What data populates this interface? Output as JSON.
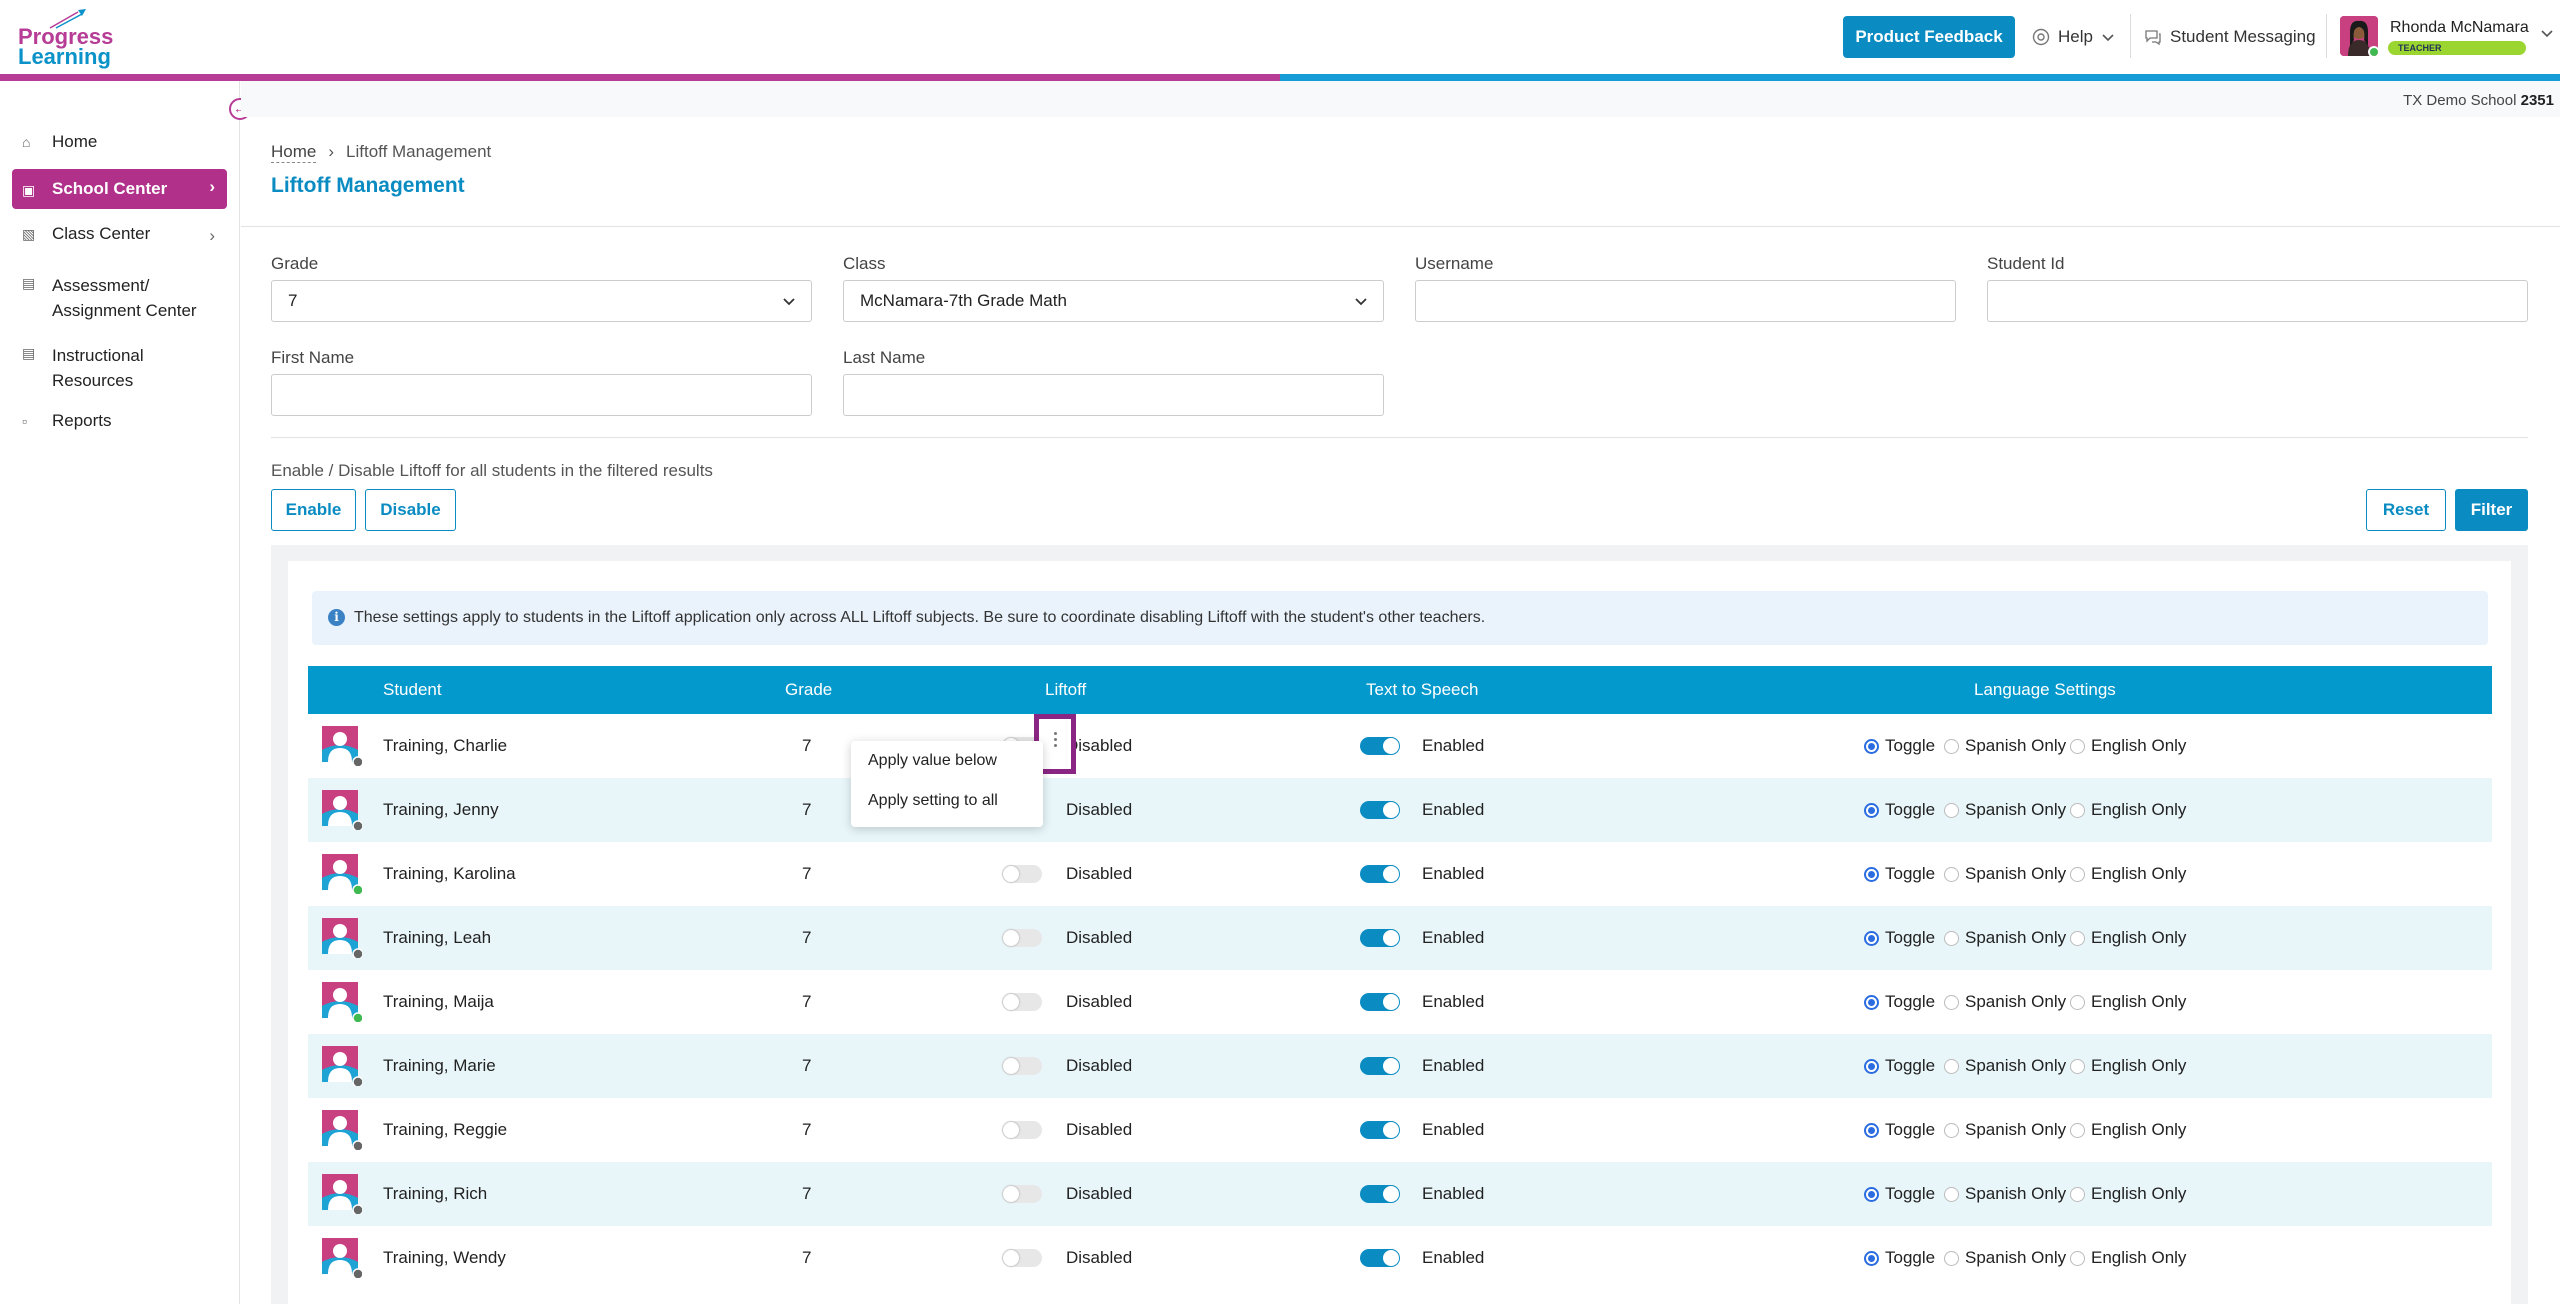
{
  "header": {
    "logo_line1": "Progress",
    "logo_line2": "Learning",
    "feedback_label": "Product Feedback",
    "help_label": "Help",
    "messaging_label": "Student Messaging",
    "user_name": "Rhonda McNamara",
    "user_role": "TEACHER"
  },
  "school": {
    "name": "TX Demo School",
    "code": "2351"
  },
  "sidebar": {
    "items": [
      {
        "label": "Home",
        "icon": "home-icon"
      },
      {
        "label": "School Center",
        "icon": "school-icon",
        "active": true
      },
      {
        "label": "Class Center",
        "icon": "class-icon"
      },
      {
        "label": "Assessment/",
        "label2": "Assignment Center",
        "icon": "book-icon"
      },
      {
        "label": "Instructional",
        "label2": "Resources",
        "icon": "resources-icon"
      },
      {
        "label": "Reports",
        "icon": "reports-icon"
      }
    ]
  },
  "breadcrumb": {
    "home": "Home",
    "current": "Liftoff Management"
  },
  "page_title": "Liftoff Management",
  "filters": {
    "grade_label": "Grade",
    "grade_value": "7",
    "class_label": "Class",
    "class_value": "McNamara-7th Grade Math",
    "username_label": "Username",
    "username_value": "",
    "studentid_label": "Student Id",
    "studentid_value": "",
    "firstname_label": "First Name",
    "firstname_value": "",
    "lastname_label": "Last Name",
    "lastname_value": ""
  },
  "bulk": {
    "label": "Enable / Disable Liftoff for all students in the filtered results",
    "enable": "Enable",
    "disable": "Disable",
    "reset": "Reset",
    "filter": "Filter"
  },
  "notice": "These settings apply to students in the Liftoff application only across ALL Liftoff subjects. Be sure to coordinate disabling Liftoff with the student's other teachers.",
  "table": {
    "headers": {
      "student": "Student",
      "grade": "Grade",
      "liftoff": "Liftoff",
      "tts": "Text to Speech",
      "language": "Language Settings"
    },
    "language_options": [
      "Toggle",
      "Spanish Only",
      "English Only"
    ],
    "rows": [
      {
        "name": "Training, Charlie",
        "grade": "7",
        "liftoff": "Disabled",
        "tts": "Enabled",
        "online": false
      },
      {
        "name": "Training, Jenny",
        "grade": "7",
        "liftoff": "Disabled",
        "tts": "Enabled",
        "online": false
      },
      {
        "name": "Training, Karolina",
        "grade": "7",
        "liftoff": "Disabled",
        "tts": "Enabled",
        "online": true
      },
      {
        "name": "Training, Leah",
        "grade": "7",
        "liftoff": "Disabled",
        "tts": "Enabled",
        "online": false
      },
      {
        "name": "Training, Maija",
        "grade": "7",
        "liftoff": "Disabled",
        "tts": "Enabled",
        "online": true
      },
      {
        "name": "Training, Marie",
        "grade": "7",
        "liftoff": "Disabled",
        "tts": "Enabled",
        "online": false
      },
      {
        "name": "Training, Reggie",
        "grade": "7",
        "liftoff": "Disabled",
        "tts": "Enabled",
        "online": false
      },
      {
        "name": "Training, Rich",
        "grade": "7",
        "liftoff": "Disabled",
        "tts": "Enabled",
        "online": false
      },
      {
        "name": "Training, Wendy",
        "grade": "7",
        "liftoff": "Disabled",
        "tts": "Enabled",
        "online": false
      }
    ]
  },
  "context_menu": {
    "apply_below": "Apply value below",
    "apply_all": "Apply setting to all"
  }
}
